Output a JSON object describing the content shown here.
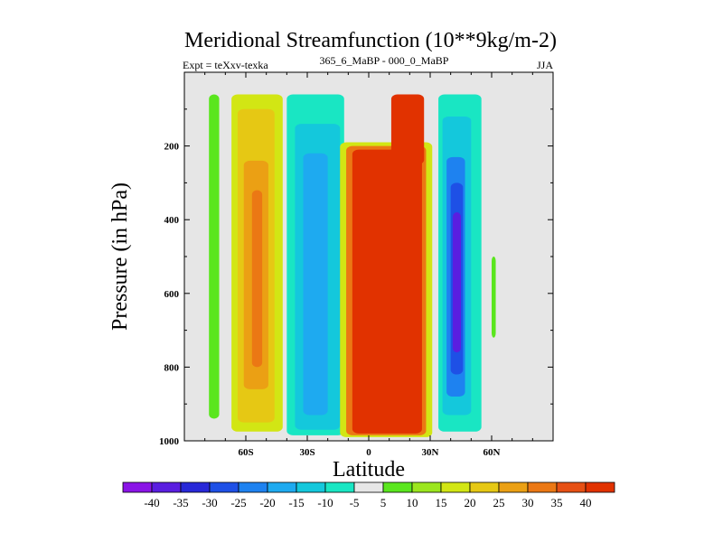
{
  "chart_data": {
    "type": "filled-contour",
    "title": "Meridional Streamfunction (10**9kg/m-2)",
    "experiment_label": "Expt = teXxv-texka",
    "comparison_label": "365_6_MaBP - 000_0_MaBP",
    "season": "JJA",
    "xlabel": "Latitude",
    "ylabel": "Pressure (in hPa)",
    "x_range": [
      -90,
      90
    ],
    "y_range": [
      1000,
      0
    ],
    "x_ticks": [
      {
        "value": -60,
        "label": "60S"
      },
      {
        "value": -30,
        "label": "30S"
      },
      {
        "value": 0,
        "label": "0"
      },
      {
        "value": 30,
        "label": "30N"
      },
      {
        "value": 60,
        "label": "60N"
      }
    ],
    "y_ticks": [
      {
        "value": 200,
        "label": "200"
      },
      {
        "value": 400,
        "label": "400"
      },
      {
        "value": 600,
        "label": "600"
      },
      {
        "value": 800,
        "label": "800"
      },
      {
        "value": 1000,
        "label": "1000"
      }
    ],
    "background_color": "#e6e6e6",
    "colorbar": {
      "labels": [
        "-40",
        "-35",
        "-30",
        "-25",
        "-20",
        "-15",
        "-10",
        "-5",
        "5",
        "10",
        "15",
        "20",
        "25",
        "30",
        "35",
        "40"
      ],
      "colors": [
        "#8a14e6",
        "#5a1ee0",
        "#2828d8",
        "#1e50e6",
        "#1e82f0",
        "#1eaaf0",
        "#14c8dc",
        "#19e6c3",
        "#e6e6e6",
        "#5ae61e",
        "#9be61e",
        "#d2e614",
        "#e6c814",
        "#eba014",
        "#eb7814",
        "#e65014",
        "#e13200"
      ]
    },
    "cells": [
      {
        "name": "band-70s",
        "x": [
          -78,
          -73
        ],
        "p": [
          60,
          940
        ],
        "bin": 9
      },
      {
        "name": "cell-60s-outer",
        "x": [
          -67,
          -42
        ],
        "p": [
          60,
          975
        ],
        "bin": 11
      },
      {
        "name": "cell-60s-mid",
        "x": [
          -64,
          -46
        ],
        "p": [
          100,
          950
        ],
        "bin": 12
      },
      {
        "name": "cell-60s-core",
        "x": [
          -61,
          -49
        ],
        "p": [
          240,
          860
        ],
        "bin": 13
      },
      {
        "name": "cell-60s-peak",
        "x": [
          -57,
          -52
        ],
        "p": [
          320,
          800
        ],
        "bin": 14
      },
      {
        "name": "cell-30s-outer",
        "x": [
          -40,
          -12
        ],
        "p": [
          60,
          985
        ],
        "bin": 7
      },
      {
        "name": "cell-30s-mid",
        "x": [
          -36,
          -14
        ],
        "p": [
          140,
          970
        ],
        "bin": 6
      },
      {
        "name": "cell-30s-core",
        "x": [
          -32,
          -20
        ],
        "p": [
          220,
          930
        ],
        "bin": 5
      },
      {
        "name": "hadley-edge",
        "x": [
          -14,
          31
        ],
        "p": [
          190,
          990
        ],
        "bin": 11
      },
      {
        "name": "hadley-mid",
        "x": [
          -11,
          28
        ],
        "p": [
          200,
          985
        ],
        "bin": 14
      },
      {
        "name": "hadley-core",
        "x": [
          -8,
          26
        ],
        "p": [
          210,
          980
        ],
        "bin": 16
      },
      {
        "name": "hadley-north-tower",
        "x": [
          11,
          27
        ],
        "p": [
          60,
          250
        ],
        "bin": 16
      },
      {
        "name": "cell-40n-outer",
        "x": [
          34,
          55
        ],
        "p": [
          60,
          975
        ],
        "bin": 7
      },
      {
        "name": "cell-40n-mid",
        "x": [
          36,
          50
        ],
        "p": [
          120,
          930
        ],
        "bin": 6
      },
      {
        "name": "cell-40n-core",
        "x": [
          38,
          47
        ],
        "p": [
          230,
          880
        ],
        "bin": 4
      },
      {
        "name": "cell-40n-deep",
        "x": [
          40,
          46
        ],
        "p": [
          300,
          820
        ],
        "bin": 3
      },
      {
        "name": "cell-40n-min",
        "x": [
          41,
          45
        ],
        "p": [
          380,
          760
        ],
        "bin": 1
      },
      {
        "name": "band-60n",
        "x": [
          60,
          62
        ],
        "p": [
          500,
          720
        ],
        "bin": 9
      }
    ]
  }
}
